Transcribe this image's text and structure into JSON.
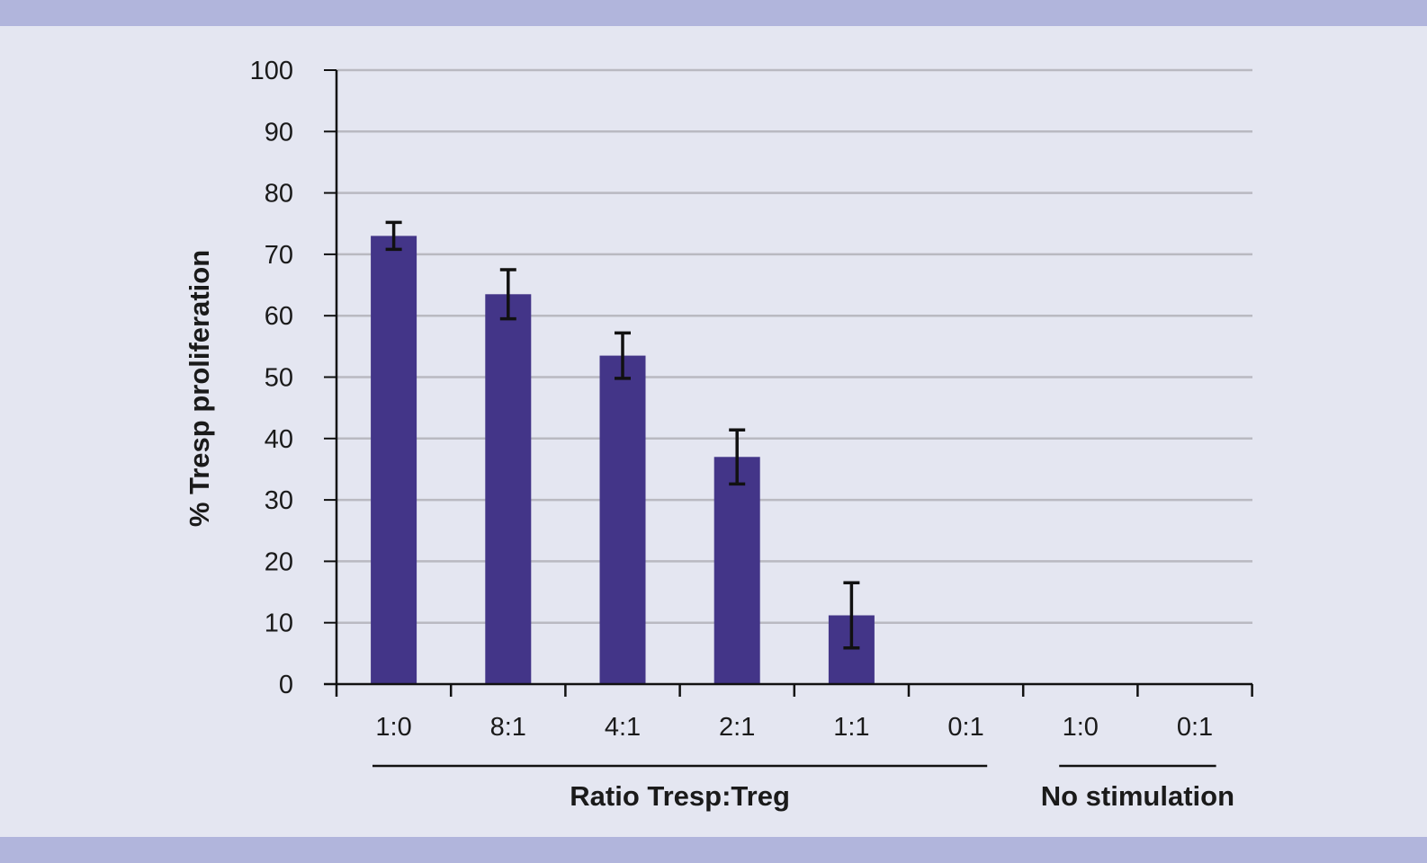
{
  "frame": {
    "band_color": "#b1b5dc",
    "background_color": "#e4e6f1"
  },
  "chart_data": {
    "type": "bar",
    "title": "",
    "ylabel": "% Tresp proliferation",
    "xlabel": "",
    "ylim": [
      0,
      100
    ],
    "yticks": [
      "0",
      "10",
      "20",
      "30",
      "40",
      "50",
      "60",
      "70",
      "80",
      "90",
      "100"
    ],
    "grid": true,
    "bar_color": "#433588",
    "categories": [
      "1:0",
      "8:1",
      "4:1",
      "2:1",
      "1:1",
      "0:1",
      "1:0",
      "0:1"
    ],
    "values": [
      73,
      63.5,
      53.5,
      37,
      11.2,
      0,
      0,
      0
    ],
    "errors": [
      2.2,
      4,
      3.7,
      4.4,
      5.3,
      0,
      0,
      0
    ],
    "groups": [
      {
        "label": "Ratio Tresp:Treg",
        "categories": [
          0,
          5
        ]
      },
      {
        "label": "No stimulation",
        "categories": [
          6,
          7
        ]
      }
    ]
  }
}
